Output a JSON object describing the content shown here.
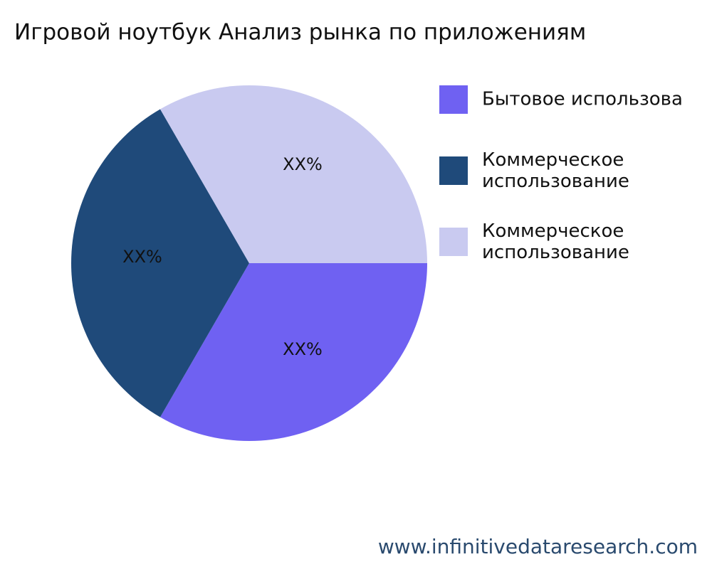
{
  "chart_data": {
    "type": "pie",
    "title": "Игровой ноутбук Анализ рынка по приложениям",
    "categories": [
      "Бытовое использова",
      "Коммерческое использование",
      "Коммерческое использование"
    ],
    "values": [
      33.3,
      33.3,
      33.3
    ],
    "value_labels": [
      "XX%",
      "XX%",
      "XX%"
    ],
    "colors": [
      "#6f61f2",
      "#1f4a7a",
      "#c9caf0"
    ],
    "footer": "www.infinitivedataresearch.com"
  }
}
